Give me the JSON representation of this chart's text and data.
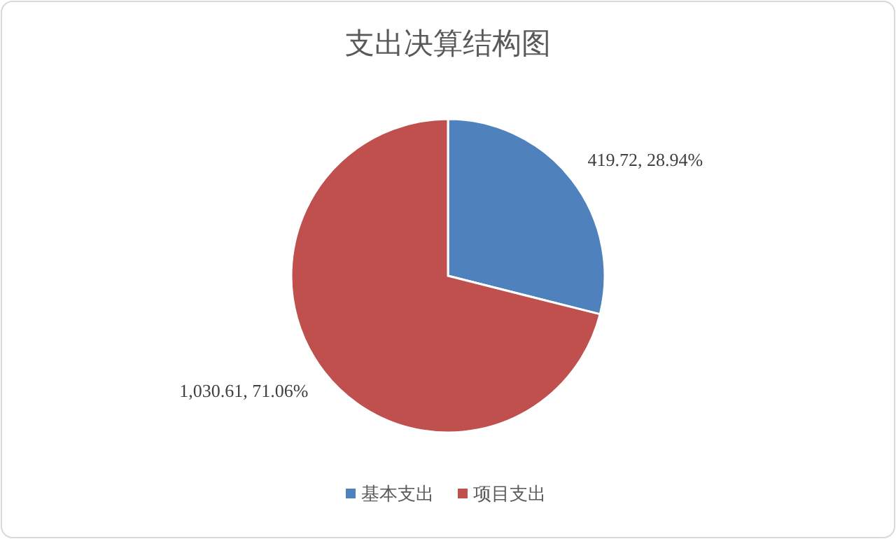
{
  "chart_data": {
    "type": "pie",
    "title": "支出决算结构图",
    "categories": [
      "基本支出",
      "项目支出"
    ],
    "values": [
      419.72,
      1030.61
    ],
    "colors": [
      "#4f81bd",
      "#c0504d"
    ],
    "value_labels": [
      "419.72, 28.94%",
      "1,030.61, 71.06%"
    ],
    "legend": "bottom"
  }
}
